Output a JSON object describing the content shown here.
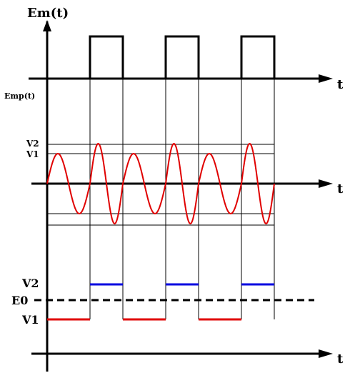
{
  "labels": {
    "em_axis": "Em(t)",
    "emp_axis": "Emp(t)",
    "t_top": "t",
    "t_middle": "t",
    "t_bottom": "t",
    "v2_mid": "V2",
    "v1_mid": "V1",
    "v2_bottom": "V2",
    "e0": "E0",
    "v1_bottom": "V1"
  },
  "colors": {
    "axis": "#000000",
    "guide": "#000000",
    "sine": "#e00000",
    "level_high": "#0000e0",
    "level_low": "#e00000"
  }
}
